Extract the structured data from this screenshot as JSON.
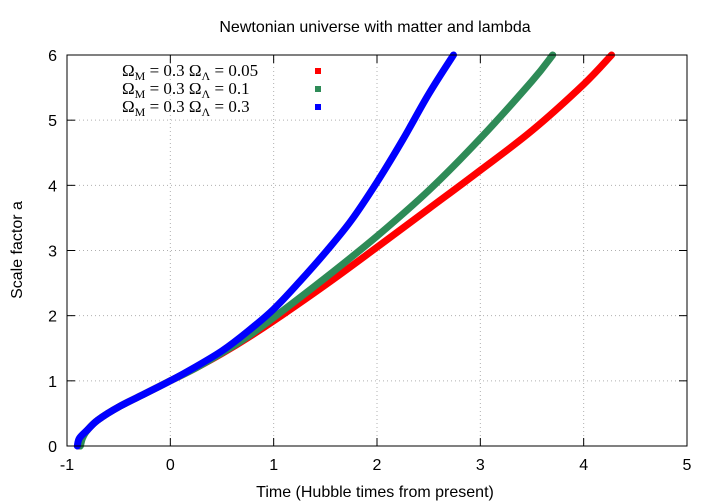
{
  "chart_data": {
    "type": "line",
    "title": "Newtonian universe with matter and lambda",
    "xlabel": "Time (Hubble times from present)",
    "ylabel": "Scale factor a",
    "xlim": [
      -1,
      5
    ],
    "ylim": [
      0,
      6
    ],
    "xticks": [
      "-1",
      "0",
      "1",
      "2",
      "3",
      "4",
      "5"
    ],
    "yticks": [
      "0",
      "1",
      "2",
      "3",
      "4",
      "5",
      "6"
    ],
    "grid": true,
    "legend_position": "top-left",
    "series": [
      {
        "name": "ΩM = 0.3  ΩΛ = 0.05",
        "label": {
          "a": "Ω",
          "a_sub": "M",
          "b": " = 0.3  Ω",
          "b_sub": "Λ",
          "c": " = 0.05"
        },
        "color": "#ff0000",
        "x": [
          -0.88,
          -0.86,
          -0.8,
          -0.7,
          -0.5,
          -0.25,
          0,
          0.25,
          0.5,
          0.75,
          1.0,
          1.5,
          2.0,
          2.5,
          3.0,
          3.5,
          4.0,
          4.27
        ],
        "y": [
          0,
          0.12,
          0.25,
          0.4,
          0.6,
          0.8,
          1.0,
          1.2,
          1.42,
          1.66,
          1.92,
          2.47,
          3.05,
          3.64,
          4.23,
          4.84,
          5.55,
          6.0
        ]
      },
      {
        "name": "ΩM = 0.3  ΩΛ = 0.1",
        "label": {
          "a": "Ω",
          "a_sub": "M",
          "b": " = 0.3  Ω",
          "b_sub": "Λ",
          "c": " = 0.1"
        },
        "color": "#2e8b57",
        "x": [
          -0.87,
          -0.85,
          -0.8,
          -0.7,
          -0.5,
          -0.25,
          0,
          0.25,
          0.5,
          0.75,
          1.0,
          1.5,
          2.0,
          2.5,
          3.0,
          3.5,
          3.7
        ],
        "y": [
          0,
          0.12,
          0.25,
          0.4,
          0.6,
          0.8,
          1.0,
          1.2,
          1.43,
          1.68,
          1.97,
          2.58,
          3.22,
          3.92,
          4.72,
          5.6,
          6.0
        ]
      },
      {
        "name": "ΩM = 0.3  ΩΛ = 0.3",
        "label": {
          "a": "Ω",
          "a_sub": "M",
          "b": " = 0.3  Ω",
          "b_sub": "Λ",
          "c": " = 0.3"
        },
        "color": "#0000ff",
        "x": [
          -0.9,
          -0.88,
          -0.8,
          -0.7,
          -0.5,
          -0.25,
          0,
          0.25,
          0.5,
          0.75,
          1.0,
          1.25,
          1.5,
          1.75,
          2.0,
          2.25,
          2.5,
          2.74
        ],
        "y": [
          0,
          0.12,
          0.25,
          0.4,
          0.6,
          0.8,
          1.0,
          1.22,
          1.46,
          1.76,
          2.1,
          2.52,
          2.97,
          3.46,
          4.05,
          4.7,
          5.4,
          6.0
        ]
      }
    ]
  }
}
